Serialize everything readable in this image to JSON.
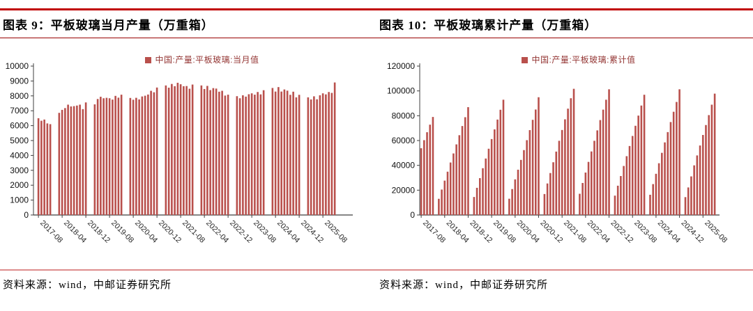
{
  "colors": {
    "bar": "#B9504C",
    "legend_text": "#943634",
    "top_rule": "#C00000",
    "mid_rule": "#990000",
    "bottom_rule": "#DD8C8C",
    "axis": "#3F3F3F",
    "tick_label": "#262626"
  },
  "figures": [
    {
      "title": "图表 9：平板玻璃当月产量（万重箱）",
      "source": "资料来源：wind，中邮证券研究所"
    },
    {
      "title": "图表 10：平板玻璃累计产量（万重箱）",
      "source": "资料来源：wind，中邮证券研究所"
    }
  ],
  "chart_data": [
    {
      "type": "bar",
      "title": "平板玻璃当月产量（万重箱）",
      "legend": "中国:产量:平板玻璃:当月值",
      "unit": "万重箱",
      "ylim": [
        0,
        10000
      ],
      "ytick_step": 1000,
      "grid": false,
      "legend_position": "top-center",
      "x_tick_labels": [
        "2017-08",
        "2018-04",
        "2018-12",
        "2019-08",
        "2020-04",
        "2020-12",
        "2021-08",
        "2022-04",
        "2022-12",
        "2023-08",
        "2024-04",
        "2024-12",
        "2025-08"
      ],
      "series": [
        {
          "year": 2017,
          "start_month": 8,
          "values": [
            6500,
            6330,
            6410,
            6150,
            6100
          ]
        },
        {
          "year": 2018,
          "start_month": 3,
          "values": [
            6860,
            7060,
            7180,
            7410,
            7290,
            7310,
            7350,
            7410,
            7110,
            7560
          ]
        },
        {
          "year": 2019,
          "start_month": 3,
          "values": [
            7430,
            7790,
            7940,
            7840,
            7870,
            7840,
            7750,
            8000,
            7880,
            8080
          ]
        },
        {
          "year": 2020,
          "start_month": 3,
          "values": [
            7860,
            7740,
            7870,
            7760,
            7960,
            8010,
            8090,
            8340,
            8240,
            8560
          ]
        },
        {
          "year": 2021,
          "start_month": 3,
          "values": [
            8700,
            8550,
            8800,
            8650,
            8880,
            8780,
            8650,
            8660,
            8480,
            8760
          ]
        },
        {
          "year": 2022,
          "start_month": 3,
          "values": [
            8700,
            8460,
            8670,
            8390,
            8520,
            8490,
            8280,
            8340,
            8020,
            8080
          ]
        },
        {
          "year": 2023,
          "start_month": 3,
          "values": [
            7980,
            7840,
            8040,
            7950,
            8110,
            8170,
            8080,
            8260,
            8100,
            8380
          ]
        },
        {
          "year": 2024,
          "start_month": 3,
          "values": [
            8530,
            8290,
            8590,
            8290,
            8430,
            8350,
            8070,
            8280,
            7900,
            8070
          ]
        },
        {
          "year": 2025,
          "start_month": 3,
          "values": [
            7900,
            7760,
            7970,
            7770,
            8040,
            8170,
            8100,
            8260,
            8200,
            8900
          ]
        }
      ]
    },
    {
      "type": "bar",
      "title": "平板玻璃累计产量（万重箱）",
      "legend": "中国:产量:平板玻璃:累计值",
      "unit": "万重箱",
      "ylim": [
        0,
        120000
      ],
      "ytick_step": 20000,
      "grid": false,
      "legend_position": "top-center",
      "x_tick_labels": [
        "2017-08",
        "2018-04",
        "2018-12",
        "2019-08",
        "2020-04",
        "2020-12",
        "2021-08",
        "2022-04",
        "2022-12",
        "2023-08",
        "2024-04",
        "2024-12",
        "2025-08"
      ],
      "series": [
        {
          "year": 2017,
          "start_month": 8,
          "values": [
            53800,
            60300,
            66700,
            72800,
            79000
          ]
        },
        {
          "year": 2018,
          "start_month": 2,
          "values": [
            13050,
            20500,
            27700,
            34900,
            42300,
            49600,
            56900,
            64300,
            71700,
            78800,
            86900
          ]
        },
        {
          "year": 2019,
          "start_month": 2,
          "values": [
            14500,
            21900,
            29700,
            37700,
            45500,
            53400,
            61200,
            69000,
            76900,
            84800,
            92900
          ]
        },
        {
          "year": 2020,
          "start_month": 2,
          "values": [
            13100,
            20900,
            28700,
            36500,
            44400,
            52300,
            60300,
            68400,
            76700,
            85000,
            94900
          ]
        },
        {
          "year": 2021,
          "start_month": 2,
          "values": [
            16900,
            25400,
            33800,
            42500,
            51100,
            59800,
            68500,
            77100,
            85700,
            94100,
            101700
          ]
        },
        {
          "year": 2022,
          "start_month": 2,
          "values": [
            17100,
            25800,
            34200,
            42800,
            51200,
            59800,
            68200,
            76500,
            84900,
            92900,
            101300
          ]
        },
        {
          "year": 2023,
          "start_month": 2,
          "values": [
            15600,
            23600,
            31400,
            39500,
            47400,
            55600,
            63700,
            71900,
            80100,
            88200,
            96900
          ]
        },
        {
          "year": 2024,
          "start_month": 2,
          "values": [
            16300,
            24900,
            33200,
            41700,
            50100,
            58500,
            66800,
            74900,
            83200,
            91100,
            101300
          ]
        },
        {
          "year": 2025,
          "start_month": 2,
          "values": [
            14400,
            22200,
            31100,
            40000,
            48000,
            56000,
            64500,
            72500,
            80500,
            88900,
            97800
          ]
        }
      ]
    }
  ]
}
